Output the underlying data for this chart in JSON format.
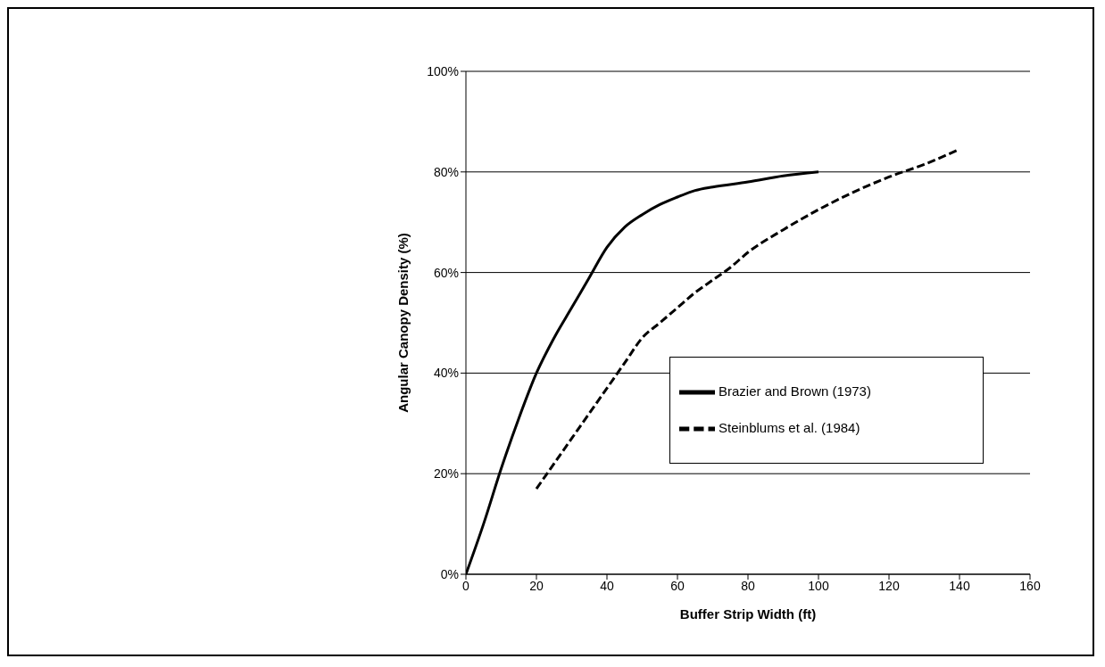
{
  "chart_data": {
    "type": "line",
    "xlabel": "Buffer Strip Width (ft)",
    "ylabel": "Angular Canopy Density (%)",
    "xlim": [
      0,
      160
    ],
    "xticks": [
      0,
      20,
      40,
      60,
      80,
      100,
      120,
      140,
      160
    ],
    "ylim": [
      0,
      100
    ],
    "yticks": [
      {
        "value": 0,
        "label": "0%"
      },
      {
        "value": 20,
        "label": "20%"
      },
      {
        "value": 40,
        "label": "40%"
      },
      {
        "value": 60,
        "label": "60%"
      },
      {
        "value": 80,
        "label": "80%"
      },
      {
        "value": 100,
        "label": "100%"
      }
    ],
    "grid": "y",
    "legend": "right",
    "marker": "none",
    "series": [
      {
        "name": "Brazier and Brown (1973)",
        "color": "#000000",
        "line_style": "solid",
        "x": [
          0,
          5,
          10,
          15,
          20,
          25,
          30,
          35,
          40,
          45,
          50,
          55,
          60,
          65,
          70,
          80,
          90,
          100
        ],
        "values": [
          0,
          10,
          21,
          31,
          40,
          47,
          53,
          59,
          65,
          69,
          71.5,
          73.5,
          75,
          76.3,
          77,
          78,
          79.2,
          80
        ]
      },
      {
        "name": "Steinblums et al. (1984)",
        "color": "#000000",
        "line_style": "dashed",
        "x": [
          20,
          25,
          30,
          35,
          40,
          45,
          50,
          55,
          60,
          65,
          70,
          75,
          80,
          90,
          100,
          110,
          120,
          130,
          140
        ],
        "values": [
          17,
          22,
          27,
          32,
          37,
          42,
          47,
          50,
          53,
          56,
          58.5,
          61,
          64,
          68.5,
          72.5,
          76,
          79,
          81.5,
          84.5
        ]
      }
    ]
  }
}
